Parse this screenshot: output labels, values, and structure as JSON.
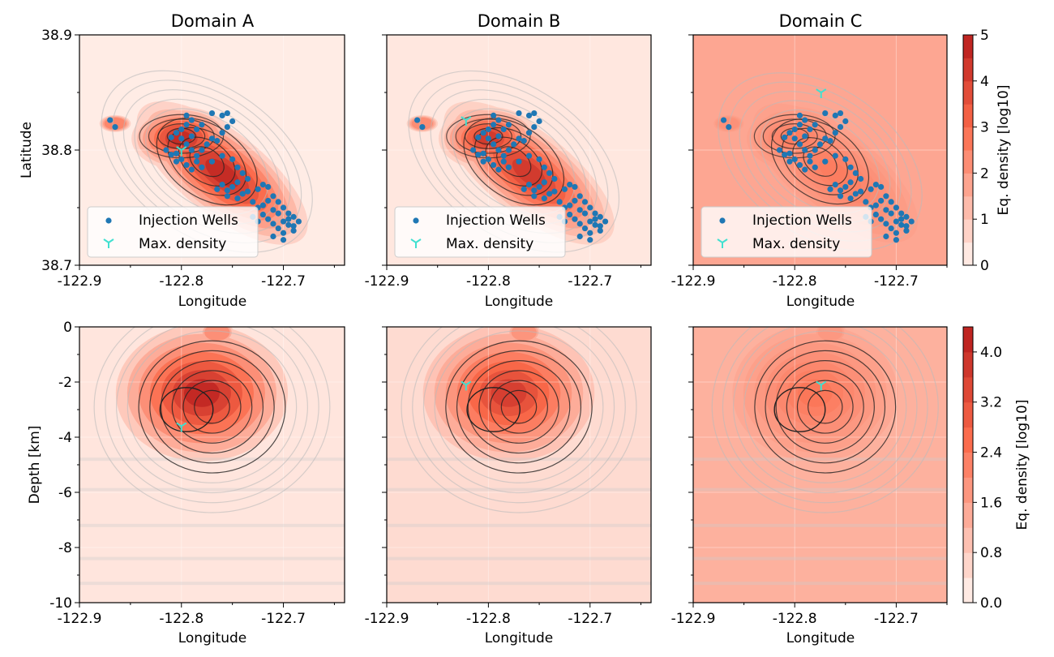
{
  "chart_data": {
    "type": "heatmap",
    "colors": {
      "cmap_low": "#fff5f0",
      "cmap_high": "#b71c1c",
      "wells": "#1f77b4",
      "max_density": "#40e0d0",
      "contour_dark": "#222222",
      "contour_light": "#bbbbbb"
    },
    "map_panels": [
      {
        "title": "Domain A",
        "xlabel": "Longitude",
        "ylabel": "Latitude",
        "xlim": [
          -122.9,
          -122.64
        ],
        "ylim": [
          38.7,
          38.9
        ],
        "xticks": [
          -122.9,
          -122.8,
          -122.7
        ],
        "xtick_labels": [
          "-122.9",
          "-122.8",
          "-122.7"
        ],
        "yticks": [
          38.7,
          38.8,
          38.9
        ],
        "ytick_labels": [
          "38.7",
          "38.8",
          "38.9"
        ],
        "background_level": 0.2,
        "peak_level": 4.6,
        "max_density": {
          "lon": -122.8,
          "lat": 38.8
        }
      },
      {
        "title": "Domain B",
        "xlabel": "Longitude",
        "ylabel": "",
        "xlim": [
          -122.9,
          -122.64
        ],
        "ylim": [
          38.7,
          38.9
        ],
        "xticks": [
          -122.9,
          -122.8,
          -122.7
        ],
        "xtick_labels": [
          "-122.9",
          "-122.8",
          "-122.7"
        ],
        "yticks": [],
        "ytick_labels": [],
        "background_level": 0.3,
        "peak_level": 4.2,
        "max_density": {
          "lon": -122.822,
          "lat": 38.826
        }
      },
      {
        "title": "Domain C",
        "xlabel": "Longitude",
        "ylabel": "",
        "xlim": [
          -122.9,
          -122.65
        ],
        "ylim": [
          38.7,
          38.9
        ],
        "xticks": [
          -122.9,
          -122.8,
          -122.7
        ],
        "xtick_labels": [
          "-122.9",
          "-122.8",
          "-122.7"
        ],
        "yticks": [],
        "ytick_labels": [],
        "background_level": 1.7,
        "peak_level": 2.6,
        "max_density": {
          "lon": -122.774,
          "lat": 38.85
        }
      }
    ],
    "depth_panels": [
      {
        "xlabel": "Longitude",
        "ylabel": "Depth [km]",
        "xlim": [
          -122.9,
          -122.64
        ],
        "ylim": [
          -10,
          0
        ],
        "xticks": [
          -122.9,
          -122.8,
          -122.7
        ],
        "xtick_labels": [
          "-122.9",
          "-122.8",
          "-122.7"
        ],
        "yticks": [
          0,
          -2,
          -4,
          -6,
          -8,
          -10
        ],
        "ytick_labels": [
          "0",
          "-2",
          "-4",
          "-6",
          "-8",
          "-10"
        ],
        "background_level": 0.3,
        "peak_level": 4.1,
        "max_density": {
          "lon": -122.8,
          "depth": -3.6
        }
      },
      {
        "xlabel": "Longitude",
        "ylabel": "",
        "xlim": [
          -122.9,
          -122.64
        ],
        "ylim": [
          -10,
          0
        ],
        "xticks": [
          -122.9,
          -122.8,
          -122.7
        ],
        "xtick_labels": [
          "-122.9",
          "-122.8",
          "-122.7"
        ],
        "yticks": [],
        "ytick_labels": [],
        "background_level": 0.5,
        "peak_level": 3.6,
        "max_density": {
          "lon": -122.822,
          "depth": -2.1
        }
      },
      {
        "xlabel": "Longitude",
        "ylabel": "",
        "xlim": [
          -122.9,
          -122.65
        ],
        "ylim": [
          -10,
          0
        ],
        "xticks": [
          -122.9,
          -122.8,
          -122.7
        ],
        "xtick_labels": [
          "-122.9",
          "-122.8",
          "-122.7"
        ],
        "yticks": [],
        "ytick_labels": [],
        "background_level": 1.3,
        "peak_level": 2.4,
        "max_density": {
          "lon": -122.774,
          "depth": -2.1
        }
      }
    ],
    "legend": {
      "wells_label": "Injection Wells",
      "max_label": "Max. density",
      "location": "lower-left"
    },
    "colorbars": [
      {
        "label": "Eq. density [log10]",
        "range": [
          0,
          5
        ],
        "ticks": [
          0,
          1,
          2,
          3,
          4,
          5
        ],
        "tick_labels": [
          "0",
          "1",
          "2",
          "3",
          "4",
          "5"
        ]
      },
      {
        "label": "Eq. density [log10]",
        "range": [
          0,
          4.4
        ],
        "ticks": [
          0,
          0.8,
          1.6,
          2.4,
          3.2,
          4.0
        ],
        "tick_labels": [
          "0.0",
          "0.8",
          "1.6",
          "2.4",
          "3.2",
          "4.0"
        ]
      }
    ],
    "injection_wells": [
      [
        -122.87,
        38.826
      ],
      [
        -122.865,
        38.82
      ],
      [
        -122.81,
        38.811
      ],
      [
        -122.805,
        38.815
      ],
      [
        -122.8,
        38.818
      ],
      [
        -122.795,
        38.822
      ],
      [
        -122.79,
        38.826
      ],
      [
        -122.785,
        38.818
      ],
      [
        -122.8,
        38.81
      ],
      [
        -122.795,
        38.805
      ],
      [
        -122.79,
        38.8
      ],
      [
        -122.785,
        38.795
      ],
      [
        -122.78,
        38.8
      ],
      [
        -122.775,
        38.805
      ],
      [
        -122.77,
        38.81
      ],
      [
        -122.765,
        38.808
      ],
      [
        -122.76,
        38.815
      ],
      [
        -122.755,
        38.82
      ],
      [
        -122.75,
        38.825
      ],
      [
        -122.76,
        38.83
      ],
      [
        -122.77,
        38.832
      ],
      [
        -122.755,
        38.832
      ],
      [
        -122.78,
        38.822
      ],
      [
        -122.79,
        38.812
      ],
      [
        -122.805,
        38.797
      ],
      [
        -122.8,
        38.792
      ],
      [
        -122.795,
        38.787
      ],
      [
        -122.79,
        38.783
      ],
      [
        -122.785,
        38.79
      ],
      [
        -122.78,
        38.785
      ],
      [
        -122.77,
        38.79
      ],
      [
        -122.76,
        38.795
      ],
      [
        -122.75,
        38.792
      ],
      [
        -122.745,
        38.785
      ],
      [
        -122.74,
        38.78
      ],
      [
        -122.735,
        38.775
      ],
      [
        -122.745,
        38.772
      ],
      [
        -122.75,
        38.768
      ],
      [
        -122.755,
        38.765
      ],
      [
        -122.76,
        38.77
      ],
      [
        -122.765,
        38.766
      ],
      [
        -122.755,
        38.76
      ],
      [
        -122.745,
        38.758
      ],
      [
        -122.74,
        38.762
      ],
      [
        -122.735,
        38.764
      ],
      [
        -122.725,
        38.766
      ],
      [
        -122.72,
        38.77
      ],
      [
        -122.715,
        38.768
      ],
      [
        -122.73,
        38.755
      ],
      [
        -122.725,
        38.75
      ],
      [
        -122.72,
        38.752
      ],
      [
        -122.715,
        38.756
      ],
      [
        -122.71,
        38.76
      ],
      [
        -122.705,
        38.755
      ],
      [
        -122.7,
        38.75
      ],
      [
        -122.695,
        38.745
      ],
      [
        -122.69,
        38.742
      ],
      [
        -122.685,
        38.738
      ],
      [
        -122.69,
        38.73
      ],
      [
        -122.695,
        38.735
      ],
      [
        -122.7,
        38.728
      ],
      [
        -122.705,
        38.732
      ],
      [
        -122.71,
        38.736
      ],
      [
        -122.715,
        38.74
      ],
      [
        -122.72,
        38.744
      ],
      [
        -122.725,
        38.738
      ],
      [
        -122.73,
        38.742
      ],
      [
        -122.7,
        38.722
      ],
      [
        -122.71,
        38.725
      ],
      [
        -122.695,
        38.74
      ],
      [
        -122.705,
        38.745
      ],
      [
        -122.71,
        38.748
      ],
      [
        -122.7,
        38.738
      ],
      [
        -122.69,
        38.734
      ],
      [
        -122.815,
        38.8
      ],
      [
        -122.81,
        38.796
      ],
      [
        -122.805,
        38.79
      ],
      [
        -122.795,
        38.83
      ]
    ]
  }
}
